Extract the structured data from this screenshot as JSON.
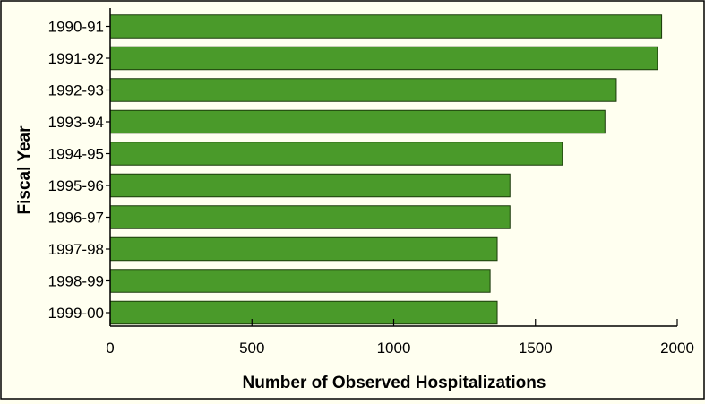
{
  "chart_data": {
    "type": "bar",
    "orientation": "horizontal",
    "categories": [
      "1990-91",
      "1991-92",
      "1992-93",
      "1993-94",
      "1994-95",
      "1995-96",
      "1996-97",
      "1997-98",
      "1998-99",
      "1999-00"
    ],
    "values": [
      1945,
      1930,
      1785,
      1745,
      1595,
      1410,
      1410,
      1365,
      1340,
      1365
    ],
    "title": "",
    "xlabel": "Number of Observed Hospitalizations",
    "ylabel": "Fiscal Year",
    "xlim": [
      0,
      2000
    ],
    "xticks": [
      "0",
      "500",
      "1000",
      "1500",
      "2000"
    ],
    "grid": false,
    "legend": "none",
    "colors": {
      "bar_fill": "#4a9a2a",
      "bar_stroke": "#1a3a0a",
      "background": "#fffff0",
      "axis": "#000000"
    }
  }
}
